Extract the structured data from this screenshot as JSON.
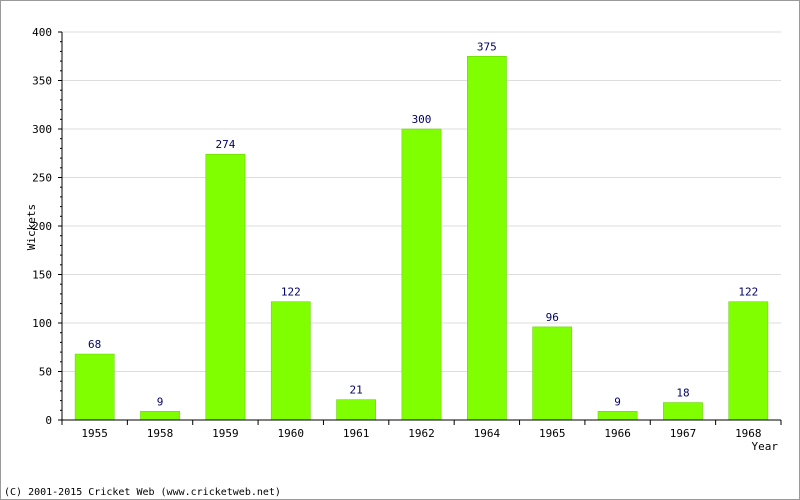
{
  "chart_data": {
    "type": "bar",
    "categories": [
      "1955",
      "1958",
      "1959",
      "1960",
      "1961",
      "1962",
      "1964",
      "1965",
      "1966",
      "1967",
      "1968"
    ],
    "values": [
      68,
      9,
      274,
      122,
      21,
      300,
      375,
      96,
      9,
      18,
      122
    ],
    "xlabel": "Year",
    "ylabel": "Wickets",
    "ylim": [
      0,
      400
    ],
    "yticks": [
      0,
      50,
      100,
      150,
      200,
      250,
      300,
      350,
      400
    ],
    "grid": true,
    "data_labels": true,
    "colors": {
      "bar": "#80ff00",
      "bar_edge": "#66cc00",
      "grid": "#dddddd",
      "label": "#000066"
    }
  },
  "footer": {
    "copyright": "(C) 2001-2015 Cricket Web (www.cricketweb.net)"
  }
}
